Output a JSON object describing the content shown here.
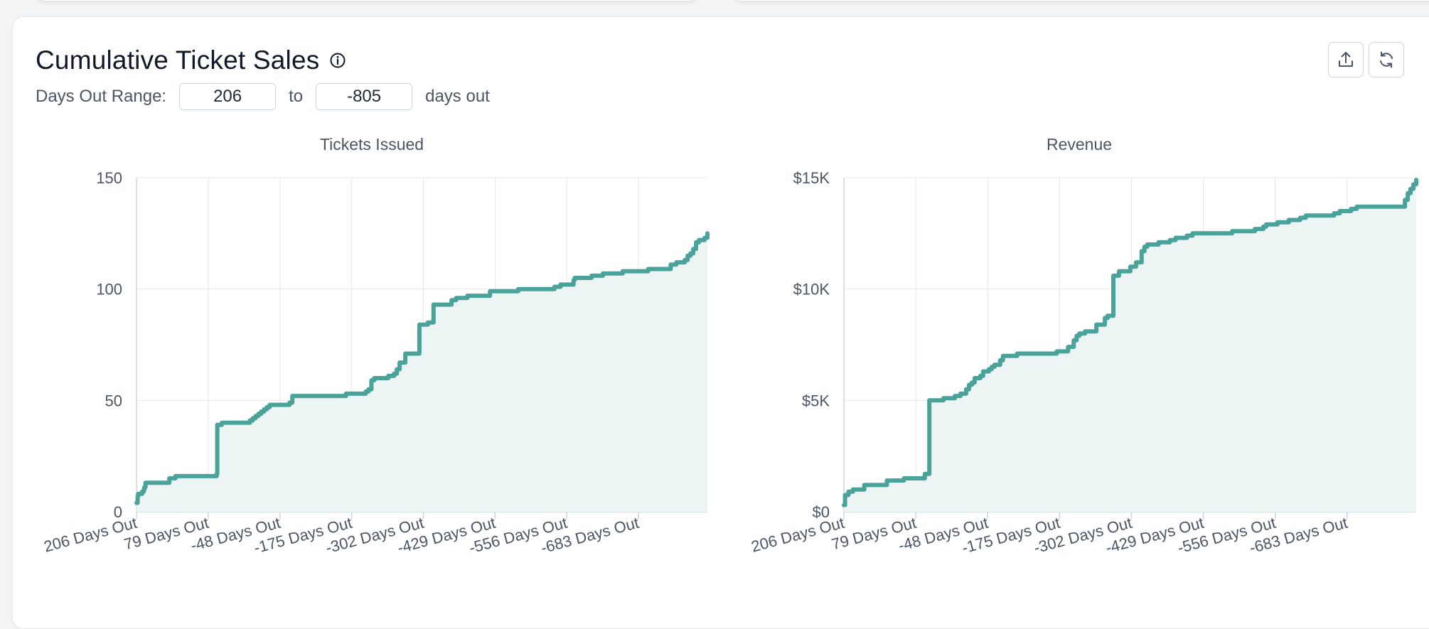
{
  "header": {
    "title": "Cumulative Ticket Sales",
    "info_icon": "info-circle-icon",
    "range_label": "Days Out Range:",
    "range_start": "206",
    "range_sep": "to",
    "range_end": "-805",
    "range_suffix": "days out",
    "actions": [
      {
        "name": "export-button",
        "icon": "upload-icon"
      },
      {
        "name": "refresh-button",
        "icon": "refresh-icon"
      }
    ]
  },
  "colors": {
    "line": "#4aa39b",
    "fill": "#ecf5f3",
    "grid": "#e5e7eb",
    "text": "#4b5563"
  },
  "chart_data": [
    {
      "type": "area",
      "step": true,
      "title": "Tickets Issued",
      "xlabel": "",
      "ylabel": "",
      "x_ticks": [
        "206 Days Out",
        "79 Days Out",
        "-48 Days Out",
        "-175 Days Out",
        "-302 Days Out",
        "-429 Days Out",
        "-556 Days Out",
        "-683 Days Out"
      ],
      "y_ticks": [
        "0",
        "50",
        "100",
        "150"
      ],
      "ylim": [
        0,
        150
      ],
      "xlim": [
        206,
        -805
      ],
      "grid": true,
      "series": [
        {
          "x": [
            206,
            204,
            203,
            196,
            193,
            192,
            190,
            180,
            178,
            150,
            148,
            140,
            137,
            130,
            120,
            110,
            90,
            79,
            70,
            64,
            63,
            60,
            55,
            40,
            30,
            20,
            10,
            5,
            0,
            -5,
            -10,
            -15,
            -20,
            -25,
            -30,
            -40,
            -60,
            -65,
            -70,
            -100,
            -150,
            -165,
            -190,
            -195,
            -200,
            -205,
            -210,
            -215,
            -240,
            -250,
            -255,
            -260,
            -270,
            -280,
            -290,
            -295,
            -300,
            -305,
            -307,
            -310,
            -320,
            -340,
            -352,
            -360,
            -378,
            -380,
            -400,
            -418,
            -420,
            -450,
            -470,
            -520,
            -532,
            -534,
            -545,
            -550,
            -568,
            -570,
            -585,
            -600,
            -610,
            -620,
            -640,
            -650,
            -655,
            -660,
            -700,
            -740,
            -750,
            -760,
            -765,
            -770,
            -775,
            -780,
            -785,
            -790,
            -800,
            -805
          ],
          "y": [
            4,
            7,
            8,
            9,
            10,
            11,
            13,
            13,
            13,
            13,
            15,
            15,
            16,
            16,
            16,
            16,
            16,
            16,
            16,
            17,
            39,
            39,
            40,
            40,
            40,
            40,
            40,
            41,
            42,
            43,
            44,
            45,
            46,
            47,
            48,
            48,
            48,
            49,
            52,
            52,
            52,
            53,
            53,
            53,
            54,
            55,
            59,
            60,
            61,
            62,
            64,
            67,
            71,
            71,
            71,
            84,
            84,
            84,
            84,
            85,
            93,
            93,
            95,
            96,
            96,
            97,
            97,
            97,
            99,
            99,
            100,
            100,
            100,
            101,
            102,
            102,
            104,
            105,
            105,
            106,
            106,
            107,
            107,
            107,
            108,
            108,
            109,
            111,
            112,
            112,
            113,
            115,
            116,
            118,
            121,
            122,
            123,
            125
          ]
        }
      ]
    },
    {
      "type": "area",
      "step": true,
      "title": "Revenue",
      "xlabel": "",
      "ylabel": "",
      "x_ticks": [
        "206 Days Out",
        "79 Days Out",
        "-48 Days Out",
        "-175 Days Out",
        "-302 Days Out",
        "-429 Days Out",
        "-556 Days Out",
        "-683 Days Out"
      ],
      "y_ticks": [
        "$0",
        "$5K",
        "$10K",
        "$15K"
      ],
      "ylim": [
        0,
        15000
      ],
      "xlim": [
        206,
        -805
      ],
      "grid": true,
      "series": [
        {
          "x": [
            206,
            204,
            198,
            190,
            170,
            160,
            140,
            130,
            100,
            79,
            70,
            65,
            63,
            55,
            40,
            30,
            10,
            0,
            -10,
            -15,
            -20,
            -25,
            -35,
            -40,
            -45,
            -50,
            -55,
            -60,
            -70,
            -75,
            -90,
            -100,
            -150,
            -170,
            -190,
            -200,
            -205,
            -210,
            -220,
            -240,
            -255,
            -260,
            -270,
            -280,
            -300,
            -310,
            -320,
            -325,
            -330,
            -340,
            -350,
            -355,
            -370,
            -380,
            -400,
            -410,
            -440,
            -460,
            -480,
            -520,
            -535,
            -540,
            -560,
            -580,
            -600,
            -610,
            -640,
            -660,
            -670,
            -690,
            -700,
            -710,
            -780,
            -785,
            -790,
            -795,
            -800,
            -805
          ],
          "y": [
            300,
            750,
            900,
            1000,
            1200,
            1200,
            1200,
            1400,
            1500,
            1500,
            1500,
            1500,
            1700,
            5000,
            5000,
            5100,
            5200,
            5300,
            5500,
            5700,
            5800,
            6000,
            6100,
            6300,
            6300,
            6400,
            6500,
            6600,
            6800,
            7000,
            7000,
            7100,
            7100,
            7200,
            7400,
            7700,
            7900,
            8000,
            8100,
            8400,
            8700,
            8800,
            10600,
            10800,
            11000,
            11200,
            11700,
            11900,
            12000,
            12000,
            12100,
            12100,
            12200,
            12300,
            12400,
            12500,
            12500,
            12500,
            12600,
            12700,
            12800,
            12900,
            13000,
            13100,
            13200,
            13300,
            13300,
            13400,
            13500,
            13600,
            13700,
            13700,
            13700,
            14000,
            14300,
            14500,
            14700,
            14900
          ]
        }
      ]
    }
  ]
}
